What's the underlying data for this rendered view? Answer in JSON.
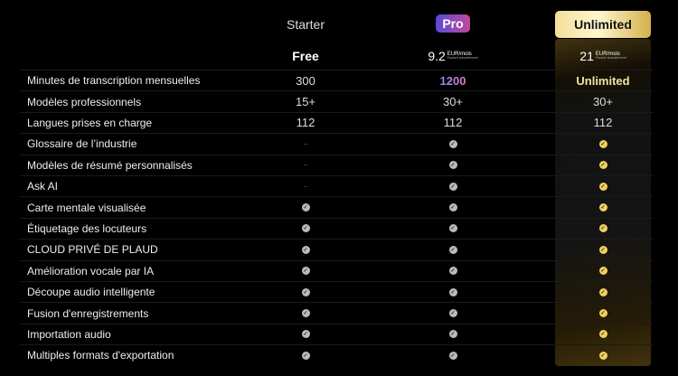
{
  "plans": {
    "starter": "Starter",
    "pro": "Pro",
    "unlimited": "Unlimited"
  },
  "prices": {
    "starter": "Free",
    "pro": {
      "amount": "9.2",
      "unit": "EUR/mois",
      "billing": "Facturé annuellement"
    },
    "unlimited": {
      "amount": "21",
      "unit": "EUR/mois",
      "billing": "Facturé annuellement"
    }
  },
  "rows": [
    {
      "label": "Minutes de transcription mensuelles",
      "starter": "300",
      "pro": "1200",
      "unlimited": "Unlimited"
    },
    {
      "label": "Modèles professionnels",
      "starter": "15+",
      "pro": "30+",
      "unlimited": "30+"
    },
    {
      "label": "Langues prises en charge",
      "starter": "112",
      "pro": "112",
      "unlimited": "112"
    },
    {
      "label": "Glossaire de l’industrie",
      "starter": "dash",
      "pro": "check",
      "unlimited": "check"
    },
    {
      "label": "Modèles de résumé personnalisés",
      "starter": "dash",
      "pro": "check",
      "unlimited": "check"
    },
    {
      "label": "Ask AI",
      "starter": "dash",
      "pro": "check",
      "unlimited": "check"
    },
    {
      "label": "Carte mentale visualisée",
      "starter": "check",
      "pro": "check",
      "unlimited": "check"
    },
    {
      "label": "Étiquetage des locuteurs",
      "starter": "check",
      "pro": "check",
      "unlimited": "check"
    },
    {
      "label": "CLOUD PRIVÉ DE PLAUD",
      "starter": "check",
      "pro": "check",
      "unlimited": "check"
    },
    {
      "label": "Amélioration vocale par IA",
      "starter": "check",
      "pro": "check",
      "unlimited": "check"
    },
    {
      "label": "Découpe audio intelligente",
      "starter": "check",
      "pro": "check",
      "unlimited": "check"
    },
    {
      "label": "Fusion d'enregistrements",
      "starter": "check",
      "pro": "check",
      "unlimited": "check"
    },
    {
      "label": "Importation audio",
      "starter": "check",
      "pro": "check",
      "unlimited": "check"
    },
    {
      "label": "Multiples formats d'exportation",
      "starter": "check",
      "pro": "check",
      "unlimited": "check"
    }
  ],
  "colors": {
    "accent_pro": "#7b5ce0",
    "accent_unlimited": "#f0d060",
    "check": "#bbbbbb"
  }
}
